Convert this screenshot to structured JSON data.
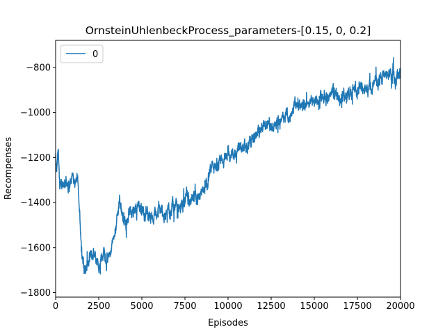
{
  "chart_data": {
    "type": "line",
    "title": "OrnsteinUhlenbeckProcess_parameters-[0.15, 0, 0.2]",
    "xlabel": "Episodes",
    "ylabel": "Recompenses",
    "xlim": [
      0,
      20000
    ],
    "ylim": [
      -1820,
      -680
    ],
    "xticks": [
      0,
      2500,
      5000,
      7500,
      10000,
      12500,
      15000,
      17500,
      20000
    ],
    "xtick_labels": [
      "0",
      "2500",
      "5000",
      "7500",
      "10000",
      "12500",
      "15000",
      "17500",
      "20000"
    ],
    "yticks": [
      -1800,
      -1600,
      -1400,
      -1200,
      -1000,
      -800
    ],
    "ytick_labels": [
      "−1800",
      "−1600",
      "−1400",
      "−1200",
      "−1000",
      "−800"
    ],
    "grid": false,
    "legend": {
      "position": "top-left",
      "entries": [
        "0"
      ]
    },
    "series": [
      {
        "name": "0",
        "color": "#1f77b4",
        "anchors": [
          [
            0,
            -1190
          ],
          [
            50,
            -1280
          ],
          [
            150,
            -1180
          ],
          [
            250,
            -1340
          ],
          [
            400,
            -1320
          ],
          [
            600,
            -1300
          ],
          [
            800,
            -1330
          ],
          [
            1000,
            -1280
          ],
          [
            1100,
            -1320
          ],
          [
            1200,
            -1270
          ],
          [
            1300,
            -1300
          ],
          [
            1400,
            -1440
          ],
          [
            1450,
            -1550
          ],
          [
            1500,
            -1620
          ],
          [
            1600,
            -1680
          ],
          [
            1800,
            -1700
          ],
          [
            2000,
            -1650
          ],
          [
            2200,
            -1620
          ],
          [
            2500,
            -1660
          ],
          [
            2800,
            -1610
          ],
          [
            3000,
            -1660
          ],
          [
            3200,
            -1620
          ],
          [
            3400,
            -1540
          ],
          [
            3600,
            -1450
          ],
          [
            3700,
            -1380
          ],
          [
            3900,
            -1460
          ],
          [
            4100,
            -1500
          ],
          [
            4300,
            -1430
          ],
          [
            4500,
            -1460
          ],
          [
            4800,
            -1420
          ],
          [
            5200,
            -1440
          ],
          [
            5600,
            -1460
          ],
          [
            6000,
            -1430
          ],
          [
            6400,
            -1450
          ],
          [
            6800,
            -1420
          ],
          [
            7200,
            -1430
          ],
          [
            7600,
            -1380
          ],
          [
            8000,
            -1400
          ],
          [
            8400,
            -1350
          ],
          [
            8800,
            -1320
          ],
          [
            9000,
            -1270
          ],
          [
            9500,
            -1220
          ],
          [
            10000,
            -1200
          ],
          [
            10500,
            -1170
          ],
          [
            11000,
            -1150
          ],
          [
            11500,
            -1110
          ],
          [
            12000,
            -1070
          ],
          [
            12500,
            -1050
          ],
          [
            13000,
            -1040
          ],
          [
            13500,
            -1010
          ],
          [
            14000,
            -970
          ],
          [
            14500,
            -960
          ],
          [
            15000,
            -950
          ],
          [
            15500,
            -930
          ],
          [
            16000,
            -910
          ],
          [
            16500,
            -940
          ],
          [
            17000,
            -920
          ],
          [
            17500,
            -890
          ],
          [
            18000,
            -900
          ],
          [
            18500,
            -870
          ],
          [
            19000,
            -840
          ],
          [
            19500,
            -830
          ],
          [
            20000,
            -810
          ]
        ],
        "noise_amplitude": 35,
        "points": 2000
      }
    ]
  }
}
